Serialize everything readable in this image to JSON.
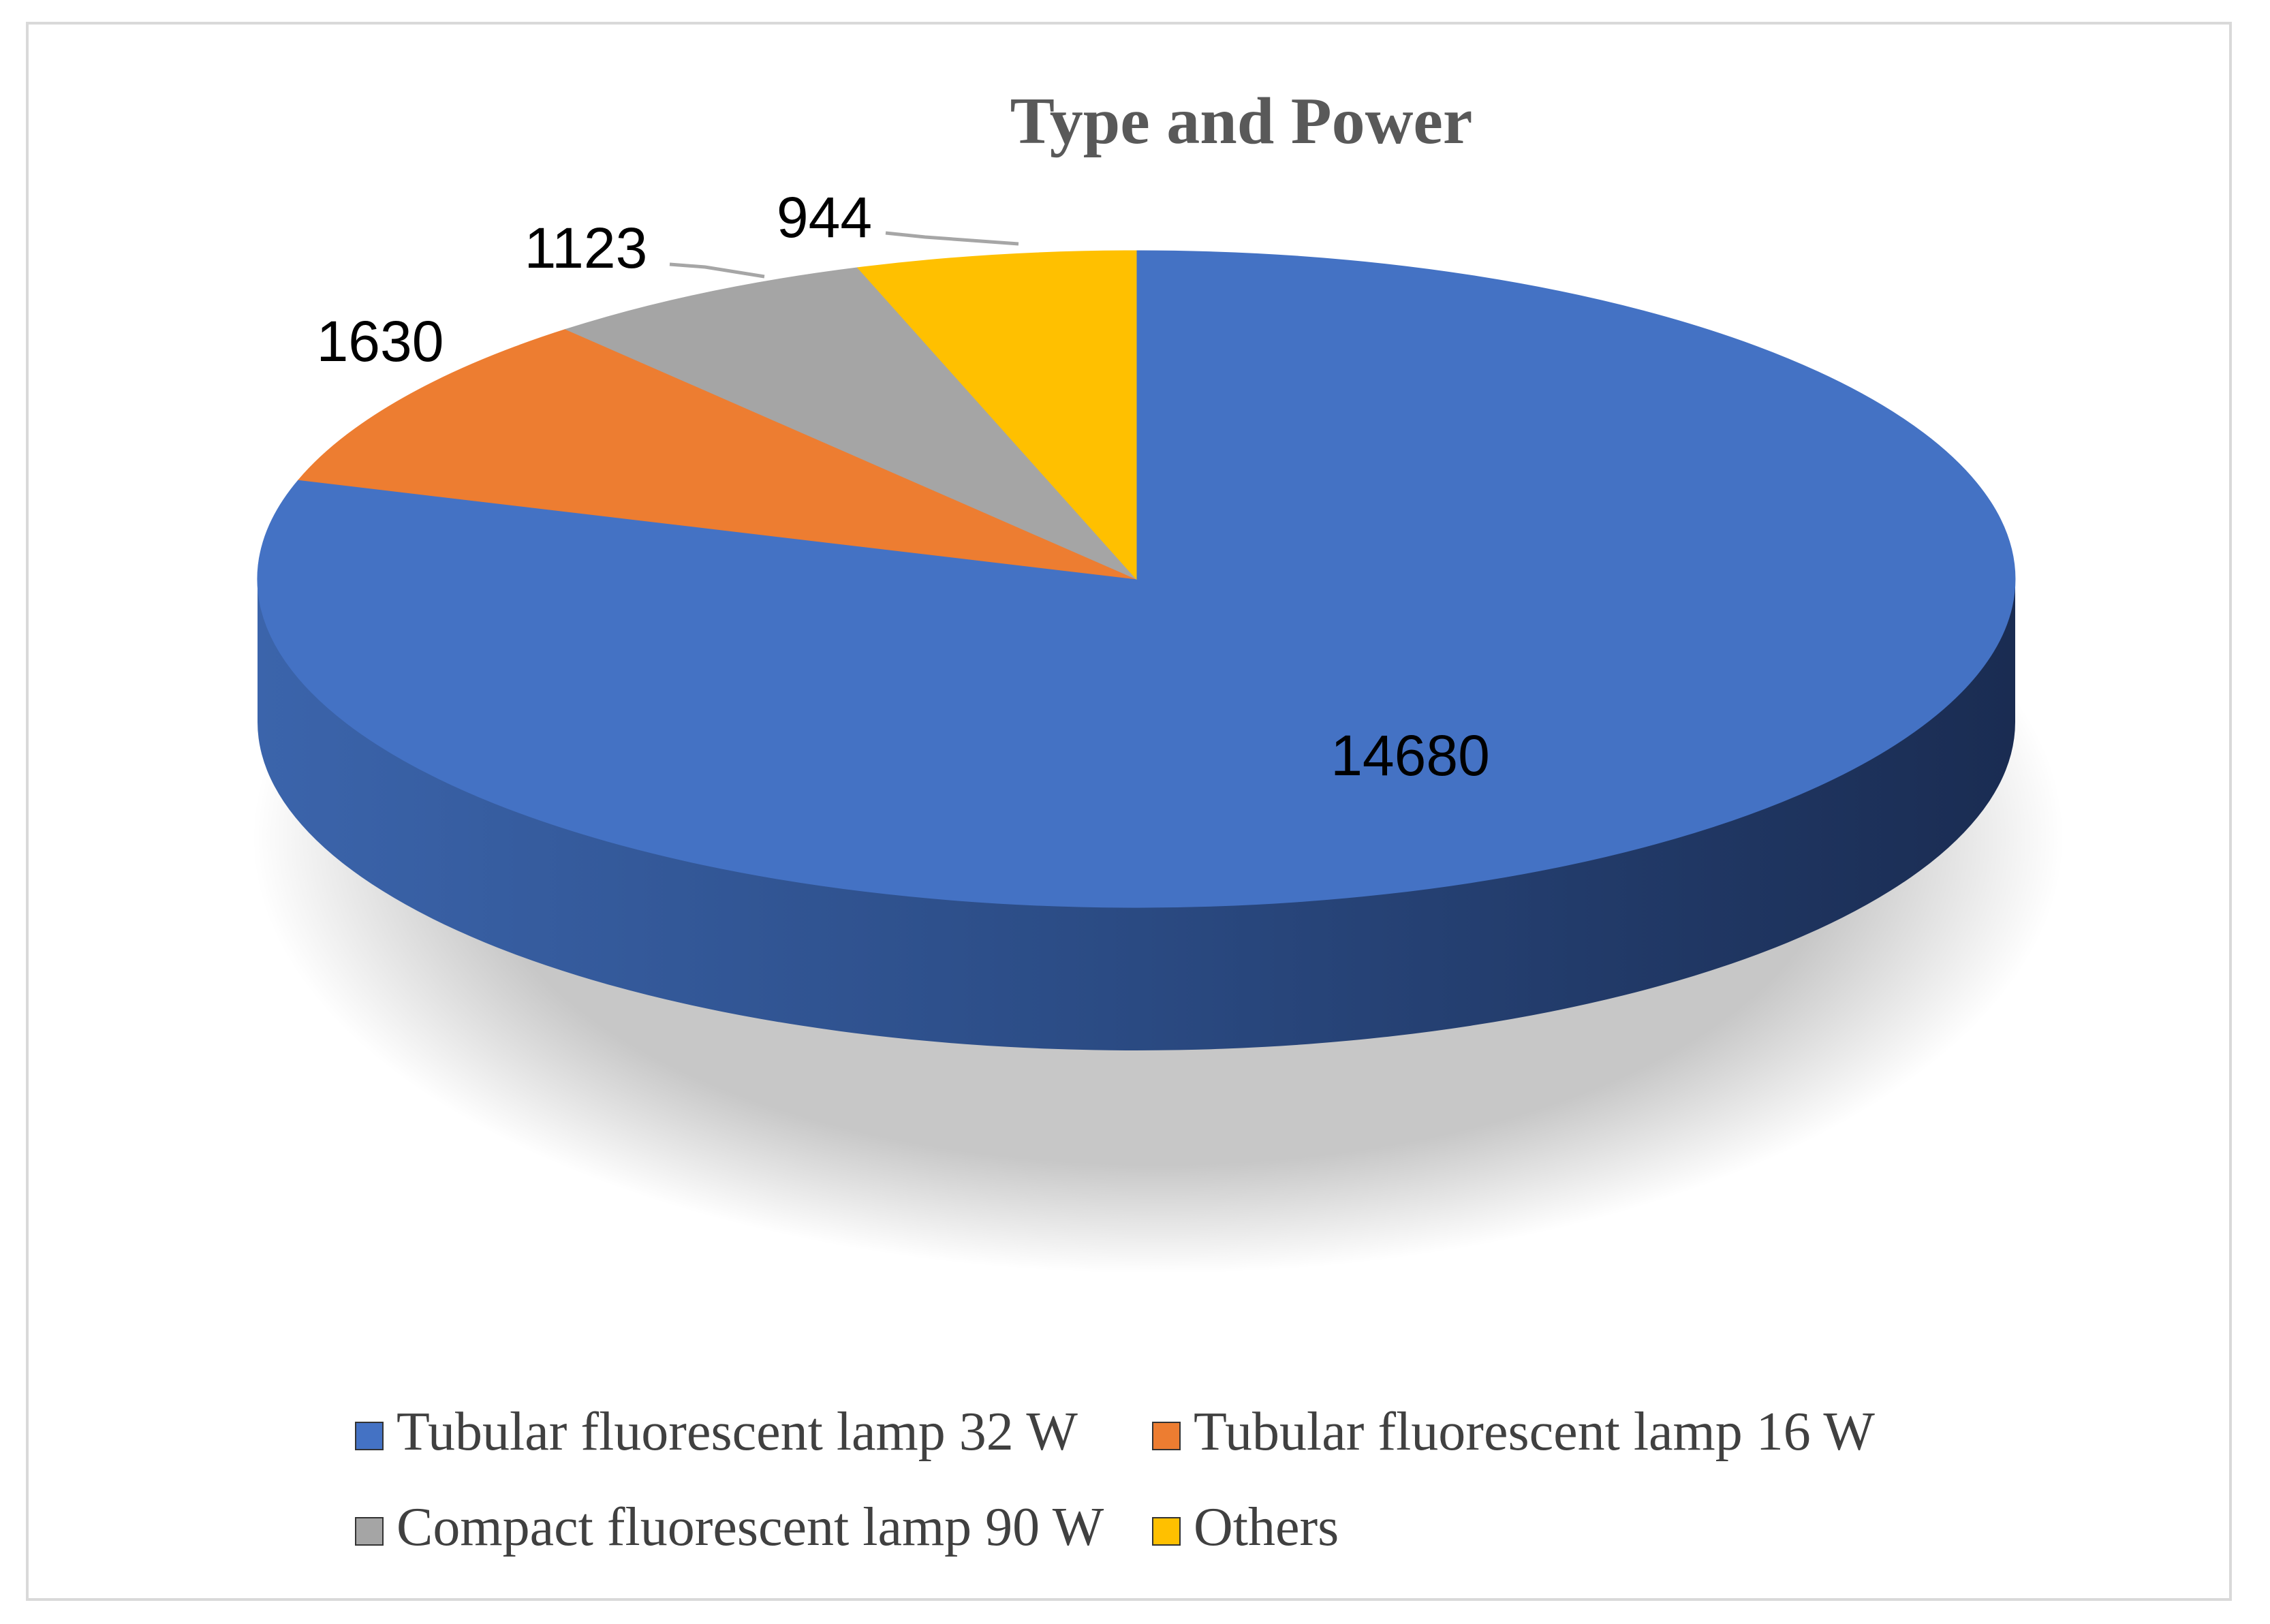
{
  "chart_data": {
    "type": "pie",
    "title": "Type and Power",
    "categories": [
      "Tubular fluorescent lamp 32 W",
      "Tubular fluorescent lamp 16 W",
      "Compact fluorescent lamp 90 W",
      "Others"
    ],
    "values": [
      14680,
      1630,
      1123,
      944
    ],
    "colors": [
      "#4472c4",
      "#ed7d31",
      "#a5a5a5",
      "#ffc000"
    ],
    "style": "3d",
    "data_labels": true,
    "legend_position": "bottom"
  }
}
